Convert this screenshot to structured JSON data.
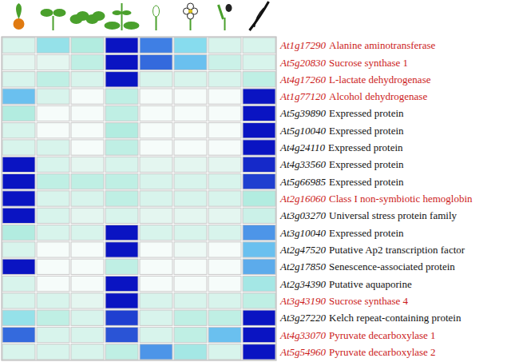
{
  "chart_data": {
    "type": "heatmap",
    "color_range": [
      0,
      1
    ],
    "rows": [
      {
        "id": "At1g17290",
        "label": "Alanine aminotransferase",
        "color": "#cc1a1a",
        "values": [
          0.2,
          0.45,
          0.35,
          1.0,
          0.75,
          0.5,
          0.2,
          0.2
        ]
      },
      {
        "id": "At5g20830",
        "label": "Sucrose synthase 1",
        "color": "#cc1a1a",
        "values": [
          0.15,
          0.15,
          0.3,
          1.0,
          0.8,
          0.6,
          0.25,
          0.2
        ]
      },
      {
        "id": "At4g17260",
        "label": "L-lactate dehydrogenase",
        "color": "#cc1a1a",
        "values": [
          0.2,
          0.3,
          0.2,
          1.0,
          0.2,
          0.2,
          0.2,
          0.3
        ]
      },
      {
        "id": "At1g77120",
        "label": "Alcohol dehydrogenase",
        "color": "#cc1a1a",
        "values": [
          0.6,
          0.2,
          0.05,
          0.3,
          0.05,
          0.05,
          0.05,
          1.0
        ]
      },
      {
        "id": "At5g39890",
        "label": "Expressed protein",
        "color": "#111111",
        "values": [
          0.35,
          0.05,
          0.05,
          0.3,
          0.05,
          0.05,
          0.05,
          1.0
        ]
      },
      {
        "id": "At5g10040",
        "label": "Expressed protein",
        "color": "#111111",
        "values": [
          0.2,
          0.05,
          0.05,
          0.35,
          0.05,
          0.05,
          0.05,
          1.0
        ]
      },
      {
        "id": "At4g24110",
        "label": "Expressed protein",
        "color": "#111111",
        "values": [
          0.2,
          0.2,
          0.05,
          0.3,
          0.05,
          0.05,
          0.05,
          1.0
        ]
      },
      {
        "id": "At4g33560",
        "label": "Expressed protein",
        "color": "#111111",
        "values": [
          1.0,
          0.2,
          0.15,
          0.2,
          0.15,
          0.15,
          0.15,
          0.95
        ]
      },
      {
        "id": "At5g66985",
        "label": "Expressed protein",
        "color": "#111111",
        "values": [
          1.0,
          0.3,
          0.3,
          0.3,
          0.2,
          0.2,
          0.2,
          0.9
        ]
      },
      {
        "id": "At2g16060",
        "label": "Class I non-symbiotic hemoglobin",
        "color": "#cc1a1a",
        "values": [
          1.0,
          0.2,
          0.2,
          0.3,
          0.2,
          0.2,
          0.2,
          0.35
        ]
      },
      {
        "id": "At3g03270",
        "label": "Universal stress protein family",
        "color": "#111111",
        "values": [
          1.0,
          0.2,
          0.15,
          0.2,
          0.15,
          0.15,
          0.15,
          0.25
        ]
      },
      {
        "id": "At3g10040",
        "label": "Expressed protein",
        "color": "#111111",
        "values": [
          0.35,
          0.2,
          0.2,
          1.0,
          0.2,
          0.2,
          0.2,
          0.7
        ]
      },
      {
        "id": "At2g47520",
        "label": "Putative Ap2 transcription factor",
        "color": "#111111",
        "values": [
          0.2,
          0.05,
          0.05,
          1.0,
          0.05,
          0.1,
          0.05,
          0.6
        ]
      },
      {
        "id": "At2g17850",
        "label": "Senescence-associated protein",
        "color": "#111111",
        "values": [
          1.0,
          0.05,
          0.05,
          0.3,
          0.05,
          0.05,
          0.05,
          0.65
        ]
      },
      {
        "id": "At2g34390",
        "label": "Putative aquaporine",
        "color": "#111111",
        "values": [
          0.2,
          0.05,
          0.05,
          1.0,
          0.05,
          0.05,
          0.05,
          0.4
        ]
      },
      {
        "id": "At3g43190",
        "label": "Sucrose synthase 4",
        "color": "#cc1a1a",
        "values": [
          0.2,
          0.2,
          0.15,
          1.0,
          0.2,
          0.2,
          0.2,
          0.3
        ]
      },
      {
        "id": "At3g27220",
        "label": "Kelch repeat-containing protein",
        "color": "#111111",
        "values": [
          0.45,
          0.3,
          0.2,
          0.9,
          0.2,
          0.3,
          0.3,
          1.0
        ]
      },
      {
        "id": "At4g33070",
        "label": "Pyruvate decarboxylase 1",
        "color": "#cc1a1a",
        "values": [
          0.8,
          0.2,
          0.2,
          0.85,
          0.2,
          0.3,
          0.6,
          1.0
        ]
      },
      {
        "id": "At5g54960",
        "label": "Pyruvate decarboxylase 2",
        "color": "#cc1a1a",
        "values": [
          0.2,
          0.2,
          0.2,
          0.3,
          0.7,
          0.4,
          0.2,
          1.0
        ]
      }
    ]
  }
}
